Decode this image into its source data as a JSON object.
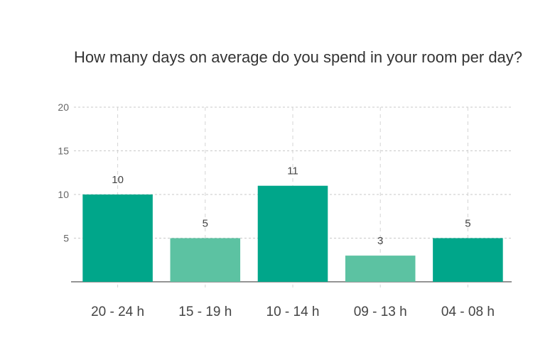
{
  "chart_data": {
    "type": "bar",
    "title": "How many days on average do you spend in your room per day?",
    "categories": [
      "20 - 24 h",
      "15 - 19 h",
      "10 - 14 h",
      "09 - 13 h",
      "04 - 08 h"
    ],
    "values": [
      10,
      5,
      11,
      3,
      5
    ],
    "bar_labels": [
      "10",
      "5",
      "11",
      "3",
      "5"
    ],
    "yticks": [
      5,
      10,
      15,
      20
    ],
    "ylim": [
      0,
      20
    ],
    "xlabel": "",
    "ylabel": "",
    "grid": true,
    "bar_colors": [
      "#00a68a",
      "#5cc2a2",
      "#00a68a",
      "#5cc2a2",
      "#00a68a"
    ]
  }
}
